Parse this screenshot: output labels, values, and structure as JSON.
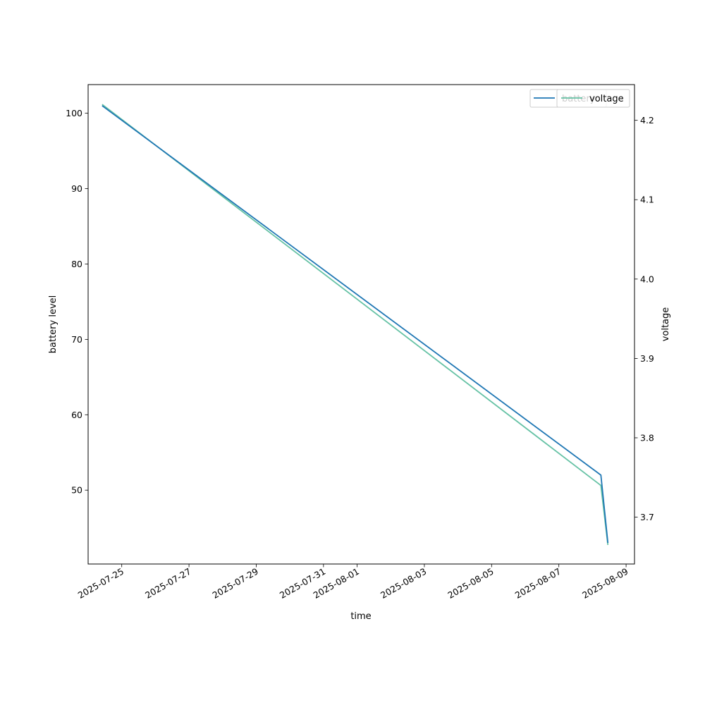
{
  "chart_data": {
    "type": "line",
    "title": "",
    "xlabel": "time",
    "ylabel": "battery level",
    "y2label": "voltage",
    "x_range": [
      "2025-07-24T00:00",
      "2025-08-09T06:00"
    ],
    "ylim": [
      40.2,
      103.8
    ],
    "y2lim": [
      3.641,
      4.245
    ],
    "x_ticks": [
      "2025-07-25",
      "2025-07-27",
      "2025-07-29",
      "2025-07-31",
      "2025-08-01",
      "2025-08-03",
      "2025-08-05",
      "2025-08-07",
      "2025-08-09"
    ],
    "y_ticks": [
      50,
      60,
      70,
      80,
      90,
      100
    ],
    "y2_ticks": [
      3.7,
      3.8,
      3.9,
      4.0,
      4.1,
      4.2
    ],
    "grid": false,
    "legend_position": "top-right",
    "series": [
      {
        "name": "battery",
        "axis": "left",
        "color": "#1f77b4",
        "points": [
          {
            "x": "2025-07-24T10:00",
            "y": 101
          },
          {
            "x": "2025-08-08T06:00",
            "y": 52
          },
          {
            "x": "2025-08-08T11:00",
            "y": 43
          }
        ]
      },
      {
        "name": "voltage",
        "axis": "right",
        "color": "#66c2a5",
        "points": [
          {
            "x": "2025-07-24T10:00",
            "y": 4.22
          },
          {
            "x": "2025-08-08T06:00",
            "y": 3.74
          },
          {
            "x": "2025-08-08T11:00",
            "y": 3.665
          }
        ]
      }
    ]
  }
}
